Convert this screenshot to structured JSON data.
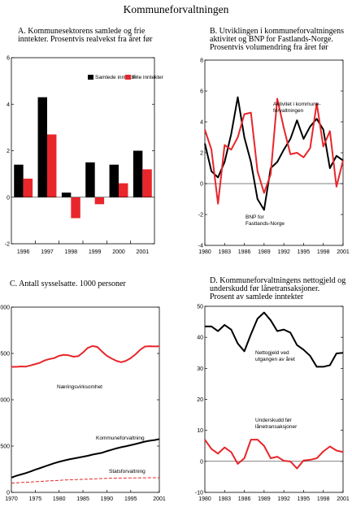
{
  "title": "Kommuneforvaltningen",
  "colors": {
    "red": "#e8262b",
    "black": "#000000"
  },
  "chart_data": [
    {
      "id": "A",
      "type": "bar",
      "title_lines": [
        "A.  Kommunesektorens samlede og frie",
        "inntekter.  Prosentvis realvekst fra året før"
      ],
      "categories": [
        "1996",
        "1997",
        "1998",
        "1999",
        "2000",
        "2001"
      ],
      "series": [
        {
          "name": "Samlede inntekter",
          "color": "#000000",
          "values": [
            1.4,
            4.3,
            0.2,
            1.5,
            1.4,
            2.0
          ]
        },
        {
          "name": "Frie inntekter",
          "color": "#e8262b",
          "values": [
            0.8,
            2.7,
            -0.9,
            -0.3,
            0.6,
            1.2
          ]
        }
      ],
      "ylim": [
        -2,
        6
      ],
      "yticks": [
        -2,
        0,
        2,
        4,
        6
      ],
      "ytick_labels": [
        "-2",
        "0",
        "2",
        "4",
        "6"
      ],
      "legend_position": "top-right",
      "grid": false
    },
    {
      "id": "B",
      "type": "line",
      "title_lines": [
        "B.  Utviklingen i kommuneforvaltningens",
        "aktivitet og BNP for Fastlands-Norge.",
        "Prosentvis volumendring fra året før"
      ],
      "x": [
        1980,
        1981,
        1982,
        1983,
        1984,
        1985,
        1986,
        1987,
        1988,
        1989,
        1990,
        1991,
        1992,
        1993,
        1994,
        1995,
        1996,
        1997,
        1998,
        1999,
        2000,
        2001
      ],
      "series": [
        {
          "name": "Aktivitet i kommuneforvaltningen",
          "color": "#000000",
          "values": [
            2.6,
            0.8,
            0.4,
            1.4,
            3.2,
            5.6,
            3.0,
            1.4,
            -1.0,
            -1.7,
            1.0,
            1.4,
            2.2,
            2.9,
            4.1,
            2.9,
            3.7,
            4.2,
            3.5,
            1.0,
            1.8,
            1.5
          ]
        },
        {
          "name": "BNP for Fastlands-Norge",
          "color": "#e8262b",
          "values": [
            3.5,
            2.2,
            -1.3,
            2.5,
            2.2,
            3.0,
            4.5,
            4.6,
            0.8,
            -0.6,
            0.6,
            5.5,
            3.6,
            1.9,
            2.0,
            1.7,
            2.3,
            5.2,
            2.4,
            3.4,
            -0.2,
            1.5
          ]
        }
      ],
      "annotations": [
        {
          "series": "Aktivitet i kommuneforvaltningen",
          "lines": [
            "Aktivitet i kommune-",
            "forvaltningen"
          ]
        },
        {
          "series": "BNP for Fastlands-Norge",
          "lines": [
            "BNP for",
            "Fastlands-Norge"
          ]
        }
      ],
      "xlim": [
        1980,
        2001
      ],
      "xticks": [
        1980,
        1983,
        1986,
        1989,
        1992,
        1995,
        1998,
        2001
      ],
      "xtick_labels": [
        "1980",
        "1983",
        "1986",
        "1989",
        "1992",
        "1995",
        "1998",
        "2001"
      ],
      "ylim": [
        -4,
        8
      ],
      "yticks": [
        -4,
        -2,
        0,
        2,
        4,
        6,
        8
      ],
      "ytick_labels": [
        "-4",
        "-2",
        "0",
        "2",
        "4",
        "6",
        "8"
      ],
      "grid": false
    },
    {
      "id": "C",
      "type": "line",
      "title_lines": [
        "C.  Antall sysselsatte. 1000 personer"
      ],
      "x": [
        1970,
        1971,
        1972,
        1973,
        1974,
        1975,
        1976,
        1977,
        1978,
        1979,
        1980,
        1981,
        1982,
        1983,
        1984,
        1985,
        1986,
        1987,
        1988,
        1989,
        1990,
        1991,
        1992,
        1993,
        1994,
        1995,
        1996,
        1997,
        1998,
        1999,
        2000,
        2001
      ],
      "series": [
        {
          "name": "Næringsvirksomhet",
          "color": "#e8262b",
          "dash": false,
          "values": [
            1355,
            1355,
            1360,
            1358,
            1370,
            1385,
            1400,
            1425,
            1440,
            1450,
            1475,
            1485,
            1480,
            1465,
            1470,
            1510,
            1560,
            1580,
            1570,
            1520,
            1475,
            1445,
            1420,
            1405,
            1420,
            1450,
            1490,
            1540,
            1575,
            1578,
            1576,
            1577
          ]
        },
        {
          "name": "Kommuneforvaltning",
          "color": "#000000",
          "dash": false,
          "values": [
            160,
            178,
            193,
            208,
            225,
            245,
            262,
            280,
            298,
            315,
            330,
            343,
            355,
            365,
            375,
            385,
            395,
            408,
            418,
            428,
            445,
            460,
            475,
            488,
            498,
            510,
            522,
            535,
            548,
            558,
            565,
            575
          ]
        },
        {
          "name": "Statsforvaltning",
          "color": "#e8262b",
          "dash": true,
          "values": [
            100,
            103,
            106,
            109,
            112,
            115,
            118,
            121,
            124,
            127,
            130,
            133,
            135,
            137,
            139,
            141,
            143,
            145,
            147,
            149,
            151,
            153,
            154,
            155,
            155,
            156,
            156,
            157,
            157,
            158,
            158,
            158
          ]
        }
      ],
      "annotations": [
        {
          "series": "Næringsvirksomhet",
          "lines": [
            "Næringsvirksomhet"
          ]
        },
        {
          "series": "Kommuneforvaltning",
          "lines": [
            "Kommuneforvaltning"
          ]
        },
        {
          "series": "Statsforvaltning",
          "lines": [
            "Statsforvaltning"
          ]
        }
      ],
      "xlim": [
        1970,
        2001
      ],
      "xticks": [
        1970,
        1975,
        1980,
        1985,
        1990,
        1995,
        2001
      ],
      "xtick_labels": [
        "1970",
        "1975",
        "1980",
        "1985",
        "1990",
        "1995",
        "2001"
      ],
      "ylim": [
        0,
        2000
      ],
      "yticks": [
        0,
        500,
        1000,
        1500,
        2000
      ],
      "ytick_labels": [
        "0",
        "500",
        "1000",
        "1500",
        "2000"
      ],
      "grid": false
    },
    {
      "id": "D",
      "type": "line",
      "title_lines": [
        "D.  Kommuneforvaltningens nettogjeld og",
        "underskudd før lånetransaksjoner.",
        "Prosent av samlede inntekter"
      ],
      "x": [
        1980,
        1981,
        1982,
        1983,
        1984,
        1985,
        1986,
        1987,
        1988,
        1989,
        1990,
        1991,
        1992,
        1993,
        1994,
        1995,
        1996,
        1997,
        1998,
        1999,
        2000,
        2001
      ],
      "series": [
        {
          "name": "Nettogjeld ved utgangen av året",
          "color": "#000000",
          "values": [
            43.5,
            43.5,
            42.0,
            44.0,
            42.5,
            38.0,
            35.5,
            41.0,
            46.0,
            48.0,
            45.5,
            42.0,
            42.5,
            41.5,
            37.5,
            36.0,
            34.0,
            30.5,
            30.5,
            31.0,
            34.8,
            35.0
          ]
        },
        {
          "name": "Underskudd før lånetransaksjoner",
          "color": "#e8262b",
          "values": [
            7.0,
            4.0,
            2.5,
            4.5,
            3.0,
            -0.8,
            1.0,
            7.0,
            7.0,
            5.0,
            1.0,
            1.5,
            0.2,
            0.0,
            -2.3,
            0.3,
            0.5,
            1.0,
            3.2,
            4.8,
            3.5,
            3.0
          ]
        }
      ],
      "annotations": [
        {
          "series": "Nettogjeld ved utgangen av året",
          "lines": [
            "Nettogjeld ved",
            "utgangen av året"
          ]
        },
        {
          "series": "Underskudd før lånetransaksjoner",
          "lines": [
            "Underskudd før",
            "lånetransaksjoner"
          ]
        }
      ],
      "xlim": [
        1980,
        2001
      ],
      "xticks": [
        1980,
        1983,
        1986,
        1989,
        1992,
        1995,
        1998,
        2001
      ],
      "xtick_labels": [
        "1980",
        "1983",
        "1986",
        "1989",
        "1992",
        "1995",
        "1998",
        "2001"
      ],
      "ylim": [
        -10,
        50
      ],
      "yticks": [
        -10,
        0,
        10,
        20,
        30,
        40,
        50
      ],
      "ytick_labels": [
        "-10",
        "0",
        "10",
        "20",
        "30",
        "40",
        "50"
      ],
      "grid": false
    }
  ]
}
